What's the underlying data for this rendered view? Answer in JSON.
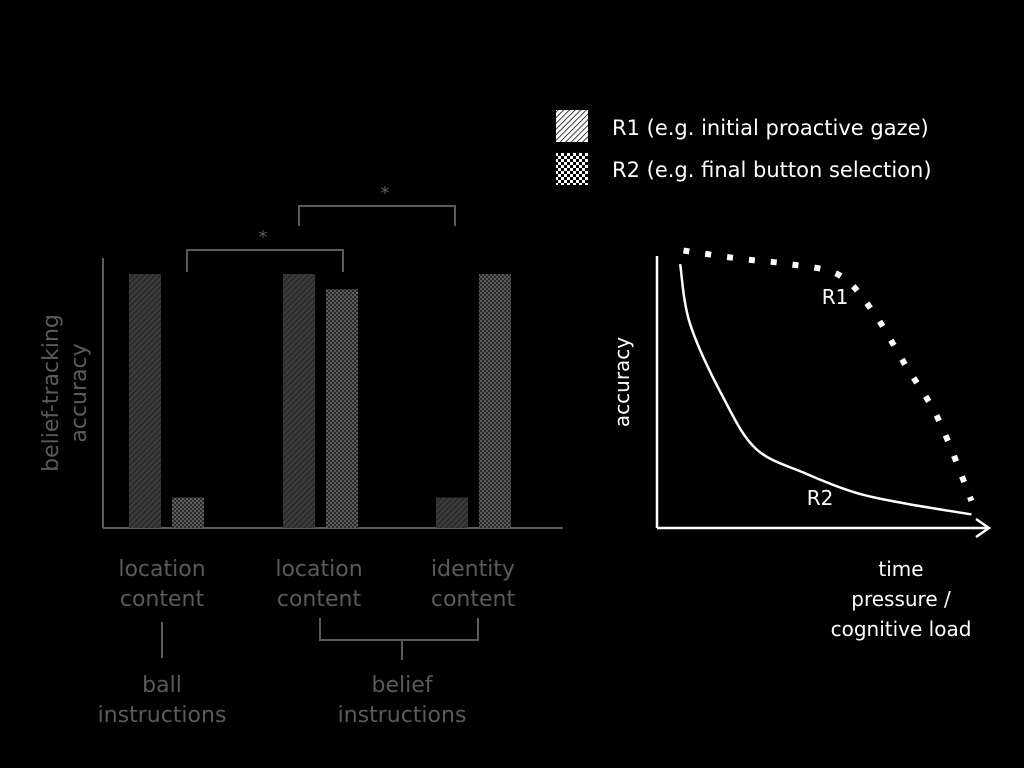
{
  "legend": {
    "r1_label": "R1 (e.g. initial proactive gaze)",
    "r2_label": "R2 (e.g. final button selection)"
  },
  "colors": {
    "background": "#000000",
    "left_chart_gray": "#5a5a5a",
    "bar_gray": "#4a4a4a",
    "right_chart_white": "#ffffff"
  },
  "chart_data": [
    {
      "type": "bar",
      "ylabel_line1": "belief-tracking",
      "ylabel_line2": "accuracy",
      "ylim": [
        0,
        1
      ],
      "groups": [
        {
          "line1": "location",
          "line2": "content"
        },
        {
          "line1": "location",
          "line2": "content"
        },
        {
          "line1": "identity",
          "line2": "content"
        }
      ],
      "categories": [
        "location content",
        "location content",
        "identity content"
      ],
      "series": [
        {
          "name": "R1",
          "pattern": "hatch",
          "values": [
            1.0,
            1.0,
            0.12
          ]
        },
        {
          "name": "R2",
          "pattern": "checker",
          "values": [
            0.12,
            0.94,
            1.0
          ]
        }
      ],
      "super_groups": [
        {
          "line1": "ball",
          "line2": "instructions",
          "spans": [
            0
          ]
        },
        {
          "line1": "belief",
          "line2": "instructions",
          "spans": [
            1,
            2
          ]
        }
      ],
      "significance": [
        {
          "from": "group0-R2",
          "to": "group1-R2",
          "label": "*"
        },
        {
          "from": "group1-R1",
          "to": "group2-R1",
          "label": "*"
        }
      ]
    },
    {
      "type": "line",
      "ylabel": "accuracy",
      "xlabel_line1": "time",
      "xlabel_line2": "pressure /",
      "xlabel_line3": "cognitive load",
      "xlim": [
        0,
        1
      ],
      "ylim": [
        0,
        1
      ],
      "series": [
        {
          "name": "R1",
          "style": "dotted",
          "x": [
            0.08,
            0.25,
            0.4,
            0.55,
            0.65,
            0.75,
            0.85,
            0.95
          ],
          "y": [
            1.02,
            0.99,
            0.97,
            0.93,
            0.8,
            0.6,
            0.4,
            0.1
          ]
        },
        {
          "name": "R2",
          "style": "solid",
          "x": [
            0.07,
            0.1,
            0.2,
            0.3,
            0.45,
            0.6,
            0.75,
            0.95
          ],
          "y": [
            0.97,
            0.75,
            0.48,
            0.29,
            0.2,
            0.13,
            0.09,
            0.05
          ]
        }
      ]
    }
  ]
}
